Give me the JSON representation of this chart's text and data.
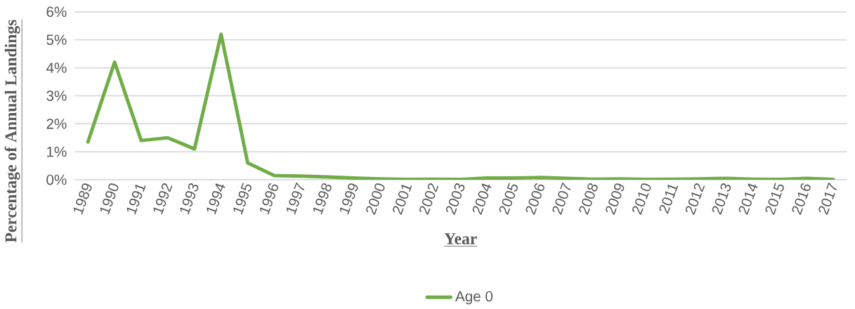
{
  "chart_data": {
    "type": "line",
    "xlabel": "Year",
    "ylabel": "Percentage of Annual Landings",
    "categories": [
      "1989",
      "1990",
      "1991",
      "1992",
      "1993",
      "1994",
      "1995",
      "1996",
      "1997",
      "1998",
      "1999",
      "2000",
      "2001",
      "2002",
      "2003",
      "2004",
      "2005",
      "2006",
      "2007",
      "2008",
      "2009",
      "2010",
      "2011",
      "2012",
      "2013",
      "2014",
      "2015",
      "2016",
      "2017"
    ],
    "series": [
      {
        "name": "Age 0",
        "color": "#70ad47",
        "values": [
          1.35,
          4.2,
          1.4,
          1.5,
          1.1,
          5.2,
          0.6,
          0.15,
          0.13,
          0.1,
          0.06,
          0.03,
          0.01,
          0.02,
          0.01,
          0.06,
          0.06,
          0.08,
          0.05,
          0.02,
          0.03,
          0.01,
          0.02,
          0.03,
          0.05,
          0.02,
          0.01,
          0.05,
          0.01
        ]
      }
    ],
    "ylim": [
      0,
      6
    ],
    "yticks": [
      {
        "value": 0,
        "label": "0%"
      },
      {
        "value": 1,
        "label": "1%"
      },
      {
        "value": 2,
        "label": "2%"
      },
      {
        "value": 3,
        "label": "3%"
      },
      {
        "value": 4,
        "label": "4%"
      },
      {
        "value": 5,
        "label": "5%"
      },
      {
        "value": 6,
        "label": "6%"
      }
    ],
    "grid": "y",
    "legend": "bottom",
    "marker": "none",
    "line_style": "solid"
  }
}
